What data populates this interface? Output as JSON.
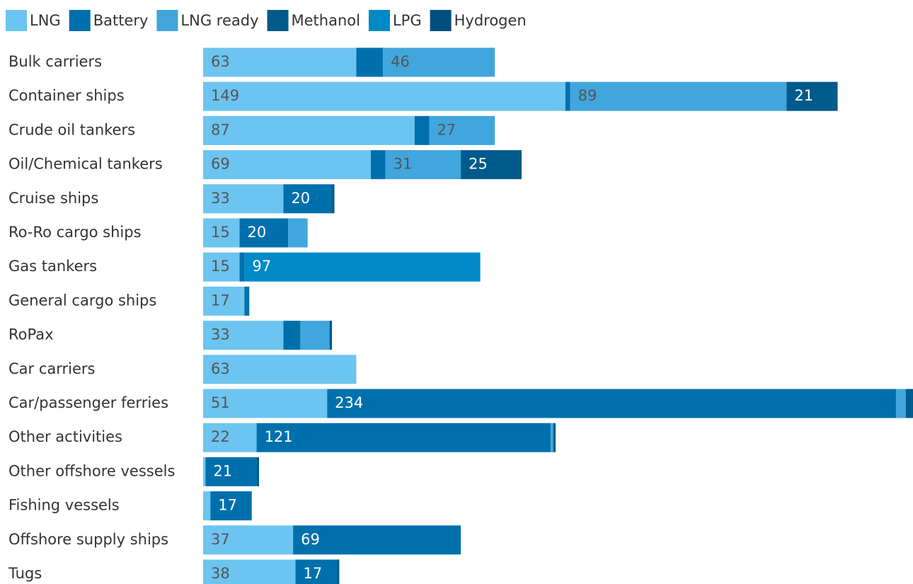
{
  "chart_data": {
    "type": "stacked-barh",
    "categories": [
      "Bulk carriers",
      "Container ships",
      "Crude oil tankers",
      "Oil/Chemical tankers",
      "Cruise ships",
      "Ro-Ro cargo ships",
      "Gas tankers",
      "General cargo ships",
      "RoPax",
      "Car carriers",
      "Car/passenger ferries",
      "Other activities",
      "Other offshore vessels",
      "Fishing vessels",
      "Offshore supply ships",
      "Tugs"
    ],
    "series": [
      {
        "name": "LNG",
        "color": "#6cc4f0",
        "values": [
          63,
          149,
          87,
          69,
          33,
          15,
          15,
          17,
          33,
          63,
          51,
          22,
          1,
          3,
          37,
          38
        ]
      },
      {
        "name": "Battery",
        "color": "#0070ad",
        "values": [
          11,
          2,
          6,
          6,
          20,
          20,
          2,
          2,
          7,
          0,
          234,
          121,
          21,
          17,
          69,
          17
        ]
      },
      {
        "name": "LNG ready",
        "color": "#41a6dd",
        "values": [
          46,
          89,
          27,
          31,
          0,
          8,
          0,
          0,
          12,
          0,
          4,
          1,
          0,
          0,
          0,
          0
        ]
      },
      {
        "name": "Methanol",
        "color": "#005a8c",
        "values": [
          0,
          21,
          0,
          25,
          1,
          0,
          0,
          0,
          1,
          0,
          3,
          1,
          1,
          0,
          0,
          1
        ]
      },
      {
        "name": "LPG",
        "color": "#0089c7",
        "values": [
          0,
          0,
          0,
          0,
          0,
          0,
          97,
          0,
          0,
          0,
          0,
          0,
          0,
          0,
          0,
          0
        ]
      },
      {
        "name": "Hydrogen",
        "color": "#004f80",
        "values": [
          0,
          0,
          0,
          0,
          0,
          0,
          0,
          0,
          0,
          0,
          0,
          0,
          0,
          0,
          0,
          0
        ]
      }
    ],
    "xlim": [
      0,
      292
    ],
    "legend": "top"
  }
}
